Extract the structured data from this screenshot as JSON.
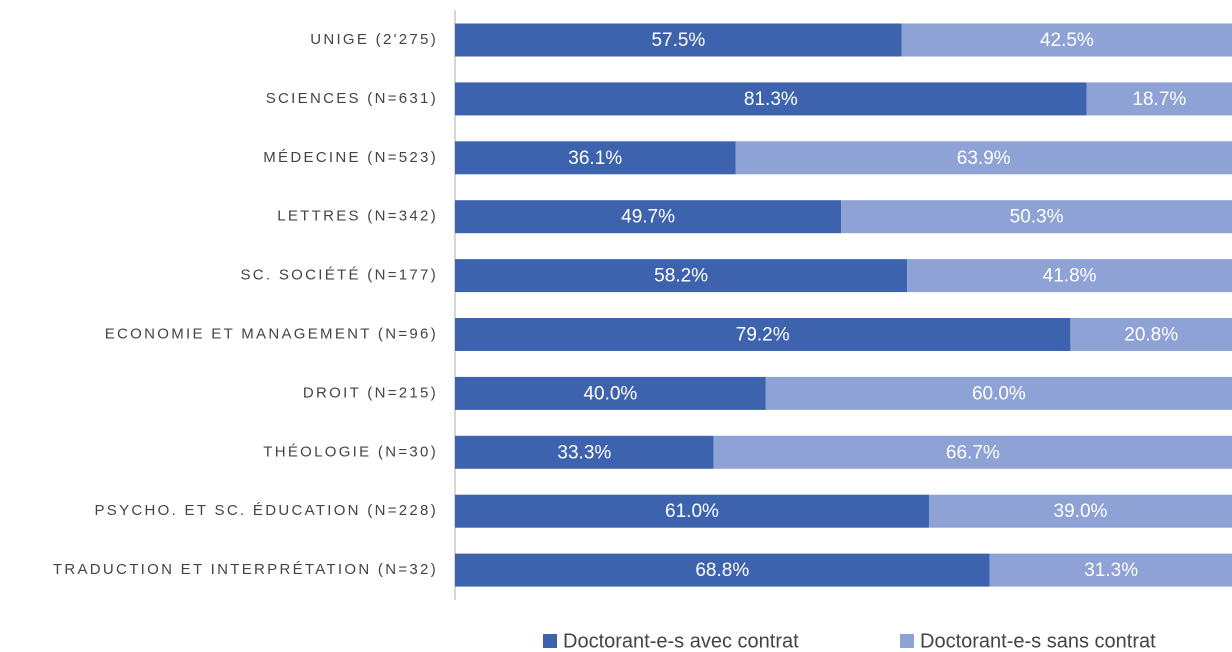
{
  "chart_data": {
    "type": "stacked_barh",
    "categories": [
      "UNIGE (2'275)",
      "SCIENCES (N=631)",
      "MÉDECINE (N=523)",
      "LETTRES (N=342)",
      "SC. SOCIÉTÉ (N=177)",
      "ECONOMIE ET MANAGEMENT (N=96)",
      "DROIT (N=215)",
      "THÉOLOGIE (N=30)",
      "PSYCHO. ET SC. ÉDUCATION (N=228)",
      "TRADUCTION ET INTERPRÉTATION (N=32)"
    ],
    "series": [
      {
        "name": "Doctorant-e-s avec contrat",
        "color": "#3d63ae",
        "values": [
          57.5,
          81.3,
          36.1,
          49.7,
          58.2,
          79.2,
          40.0,
          33.3,
          61.0,
          68.8
        ],
        "value_labels": [
          "57.5%",
          "81.3%",
          "36.1%",
          "49.7%",
          "58.2%",
          "79.2%",
          "40.0%",
          "33.3%",
          "61.0%",
          "68.8%"
        ]
      },
      {
        "name": "Doctorant-e-s sans contrat",
        "color": "#8fa2d6",
        "values": [
          42.5,
          18.7,
          63.9,
          50.3,
          41.8,
          20.8,
          60.0,
          66.7,
          39.0,
          31.3
        ],
        "value_labels": [
          "42.5%",
          "18.7%",
          "63.9%",
          "50.3%",
          "41.8%",
          "20.8%",
          "60.0%",
          "66.7%",
          "39.0%",
          "31.3%"
        ]
      }
    ],
    "xlim": [
      0,
      100
    ],
    "legend": "bottom"
  }
}
